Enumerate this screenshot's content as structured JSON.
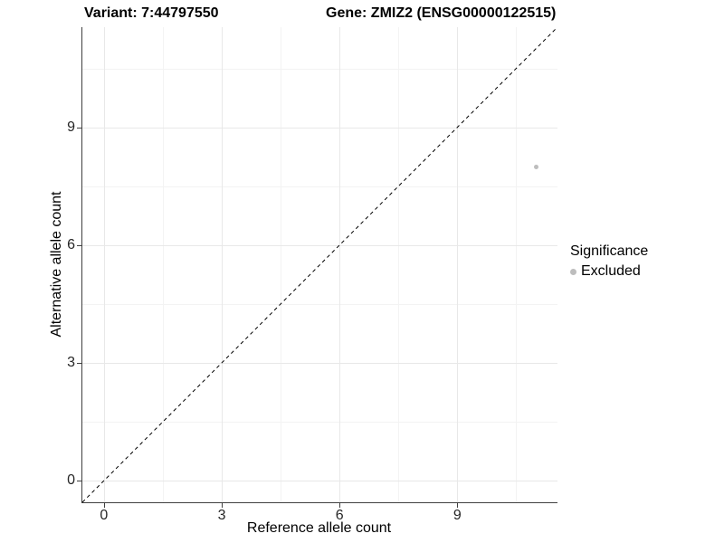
{
  "header": {
    "variant_title": "Variant: 7:44797550",
    "gene_title": "Gene: ZMIZ2 (ENSG00000122515)"
  },
  "legend": {
    "title": "Significance",
    "position": "right",
    "items": [
      {
        "label": "Excluded",
        "color": "#bdbdbd"
      }
    ]
  },
  "colors": {
    "background": "#ffffff",
    "grid_major": "#e8e8e8",
    "grid_minor": "#f3f3f3",
    "axis_line": "#404040",
    "tick_label": "#262626",
    "identity_line": "#000000",
    "point": "#bdbdbd"
  },
  "chart_data": {
    "type": "scatter",
    "title_left": "Variant: 7:44797550",
    "title_right": "Gene: ZMIZ2 (ENSG00000122515)",
    "xlabel": "Reference allele count",
    "ylabel": "Alternative allele count",
    "xlim": [
      -0.55,
      11.55
    ],
    "ylim": [
      -0.55,
      11.55
    ],
    "x_ticks": [
      0,
      3,
      6,
      9
    ],
    "y_ticks": [
      0,
      3,
      6,
      9
    ],
    "x_minor_gridlines": [
      1.5,
      4.5,
      7.5,
      10.5
    ],
    "y_minor_gridlines": [
      1.5,
      4.5,
      7.5,
      10.5
    ],
    "grid": "major-and-minor",
    "legend_position": "right",
    "identity_line": {
      "slope": 1,
      "intercept": 0,
      "style": "dashed",
      "color": "#000000"
    },
    "series": [
      {
        "name": "Excluded",
        "color": "#bdbdbd",
        "points": [
          {
            "x": 11,
            "y": 8
          }
        ]
      }
    ]
  }
}
